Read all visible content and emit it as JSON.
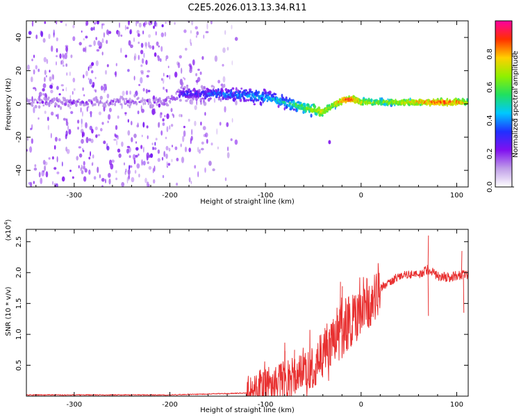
{
  "title": "C2E5.2026.013.13.34.R11",
  "chart_data": [
    {
      "type": "heatmap",
      "xlabel": "Height of straight line (km)",
      "ylabel": "Frequency (Hz)",
      "xlim": [
        -350,
        112
      ],
      "ylim": [
        -50,
        50
      ],
      "xticks": [
        -300,
        -200,
        -100,
        0,
        100
      ],
      "yticks": [
        -40,
        -20,
        0,
        20,
        40
      ],
      "colorbar": {
        "label": "Normalized spectral amplitude",
        "range": [
          0,
          1
        ],
        "ticks": [
          0.0,
          0.2,
          0.4,
          0.6,
          0.8
        ],
        "tick_labels": [
          "0.0",
          "0.2",
          "0.4",
          "0.6",
          "0.8"
        ],
        "colors": [
          "#ffffff",
          "#c09ee8",
          "#8010f0",
          "#2030ff",
          "#00c8ff",
          "#20e060",
          "#90f000",
          "#ffd000",
          "#ff3000",
          "#ff00a0"
        ]
      },
      "ridge": {
        "x": [
          -350,
          -300,
          -250,
          -200,
          -190,
          -150,
          -120,
          -100,
          -80,
          -60,
          -45,
          -40,
          -30,
          -20,
          -10,
          0,
          20,
          50,
          80,
          100,
          112
        ],
        "freq": [
          1,
          1,
          1,
          2,
          6,
          6,
          5,
          4,
          1,
          -2,
          -4,
          -5,
          -1,
          2,
          3,
          1,
          1,
          1,
          1,
          1,
          1
        ],
        "amplitude": [
          0.15,
          0.2,
          0.18,
          0.2,
          0.3,
          0.35,
          0.4,
          0.45,
          0.5,
          0.6,
          0.7,
          0.75,
          0.7,
          0.85,
          0.9,
          0.75,
          0.65,
          0.75,
          0.9,
          0.85,
          0.7
        ]
      },
      "isolated_blip": {
        "x": -33,
        "freq": -23
      }
    },
    {
      "type": "line",
      "xlabel": "Height of straight line (km)",
      "ylabel": "SNR (10 * v/v)",
      "scale_note": "(x10",
      "scale_exp": "4",
      "xlim": [
        -350,
        112
      ],
      "ylim": [
        0,
        2.7
      ],
      "xticks": [
        -300,
        -200,
        -100,
        0,
        100
      ],
      "yticks": [
        0.5,
        1.0,
        1.5,
        2.0,
        2.5
      ],
      "ytick_labels": [
        "0.5",
        "1.0",
        "1.5",
        "2.0",
        "2.5"
      ],
      "color": "#e83030",
      "envelope": {
        "x": [
          -350,
          -200,
          -120,
          -100,
          -80,
          -70,
          -60,
          -50,
          -40,
          -30,
          -20,
          -10,
          0,
          10,
          20,
          30,
          40,
          60,
          70,
          80,
          90,
          100,
          108,
          112
        ],
        "mean": [
          0.02,
          0.02,
          0.05,
          0.15,
          0.25,
          0.3,
          0.4,
          0.45,
          0.7,
          0.95,
          1.05,
          1.25,
          1.45,
          1.6,
          1.75,
          1.85,
          1.95,
          1.98,
          2.05,
          1.95,
          1.92,
          1.95,
          1.97,
          1.97
        ]
      },
      "spikes": [
        {
          "x": -80,
          "y": 0.73
        },
        {
          "x": -70,
          "y": 0.75
        },
        {
          "x": -22,
          "y": 1.85
        },
        {
          "x": -20,
          "y": 1.78
        },
        {
          "x": 70,
          "y": 2.6
        },
        {
          "x": 70,
          "y": 1.3
        },
        {
          "x": 105,
          "y": 2.35
        },
        {
          "x": 107,
          "y": 1.35
        }
      ]
    }
  ]
}
